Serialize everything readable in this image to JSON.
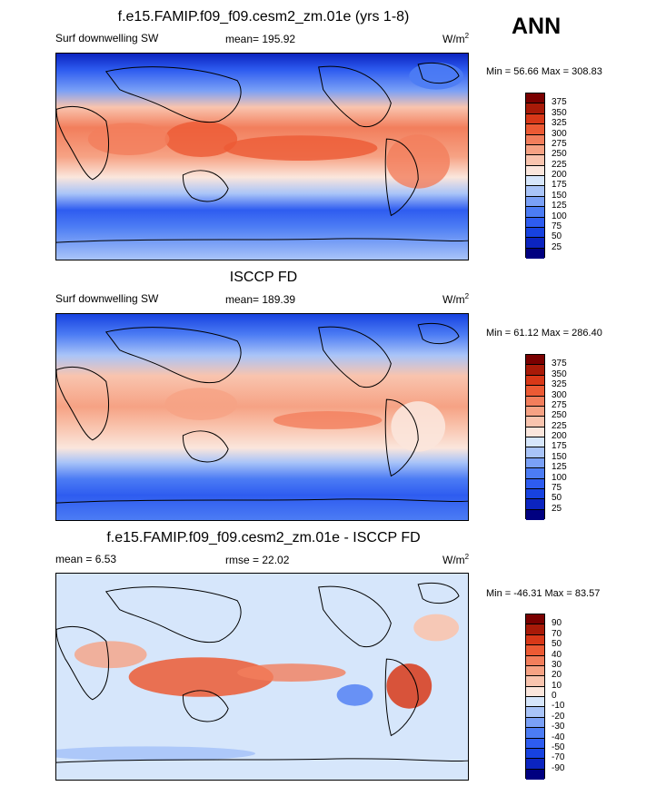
{
  "season": "ANN",
  "palette_abs": [
    "#000080",
    "#0b24c0",
    "#1742e0",
    "#2e5cf0",
    "#4c7cf4",
    "#7aa0f6",
    "#a9c4f8",
    "#d6e6fb",
    "#fbe6dc",
    "#f9c4ae",
    "#f6a284",
    "#f27e5c",
    "#ec5a34",
    "#d83818",
    "#a81a08",
    "#7a0000"
  ],
  "palette_diff": [
    "#000080",
    "#0b24c0",
    "#1742e0",
    "#2e5cf0",
    "#4c7cf4",
    "#7aa0f6",
    "#a9c4f8",
    "#d6e6fb",
    "#fbe6dc",
    "#f9c4ae",
    "#f6a284",
    "#f27e5c",
    "#ec5a34",
    "#d83818",
    "#a81a08",
    "#7a0000"
  ],
  "panels": [
    {
      "title": "f.e15.FAMIP.f09_f09.cesm2_zm.01e (yrs 1-8)",
      "left_label": "Surf downwelling SW",
      "center_label": "mean= 195.92",
      "units": "W/m",
      "units_sup": "2",
      "minmax": "Min =  56.66 Max = 308.83"
    },
    {
      "title": "ISCCP FD",
      "left_label": "Surf downwelling SW",
      "center_label": "mean= 189.39",
      "units": "W/m",
      "units_sup": "2",
      "minmax": "Min =  61.12 Max = 286.40"
    },
    {
      "title": "f.e15.FAMIP.f09_f09.cesm2_zm.01e - ISCCP FD",
      "left_label": "mean =   6.53",
      "center_label": "rmse =  22.02",
      "units": "W/m",
      "units_sup": "2",
      "minmax": "Min = -46.31 Max =  83.57"
    }
  ],
  "colorbar_abs_labels": [
    "375",
    "350",
    "325",
    "300",
    "275",
    "250",
    "225",
    "200",
    "175",
    "150",
    "125",
    "100",
    "75",
    "50",
    "25"
  ],
  "colorbar_diff_labels": [
    "90",
    "70",
    "50",
    "40",
    "30",
    "20",
    "10",
    "0",
    "-10",
    "-20",
    "-30",
    "-40",
    "-50",
    "-70",
    "-90"
  ]
}
